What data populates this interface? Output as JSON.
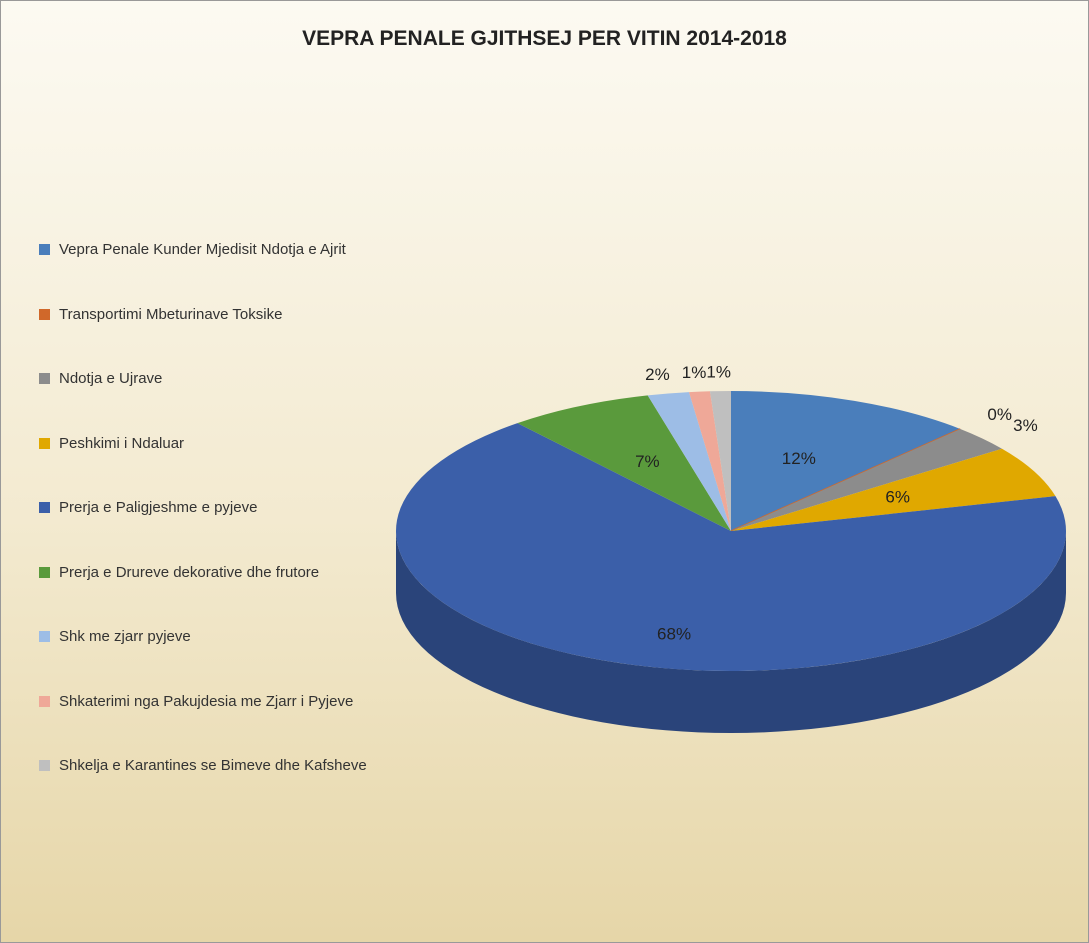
{
  "chart_data": {
    "type": "pie",
    "title": "VEPRA PENALE GJITHSEJ PER VITIN 2014-2018",
    "categories": [
      "Vepra Penale Kunder Mjedisit Ndotja e Ajrit",
      "Transportimi Mbeturinave Toksike",
      "Ndotja e Ujrave",
      "Peshkimi i Ndaluar",
      "Prerja e Paligjeshme e pyjeve",
      "Prerja e Drureve dekorative dhe frutore",
      "Shk me zjarr pyjeve",
      "Shkaterimi nga Pakujdesia me Zjarr i Pyjeve",
      "Shkelja e Karantines se Bimeve dhe Kafsheve"
    ],
    "values": [
      12,
      0,
      3,
      6,
      68,
      7,
      2,
      1,
      1
    ],
    "value_labels": [
      "12%",
      "0%",
      "3%",
      "6%",
      "68%",
      "7%",
      "2%",
      "1%",
      "1%"
    ],
    "colors": [
      "#4a7ebb",
      "#d0682a",
      "#8c8c8c",
      "#e0a800",
      "#3b5fa9",
      "#5a9a3c",
      "#9dbde6",
      "#efa898",
      "#bfbfbf"
    ],
    "legend": "left"
  }
}
